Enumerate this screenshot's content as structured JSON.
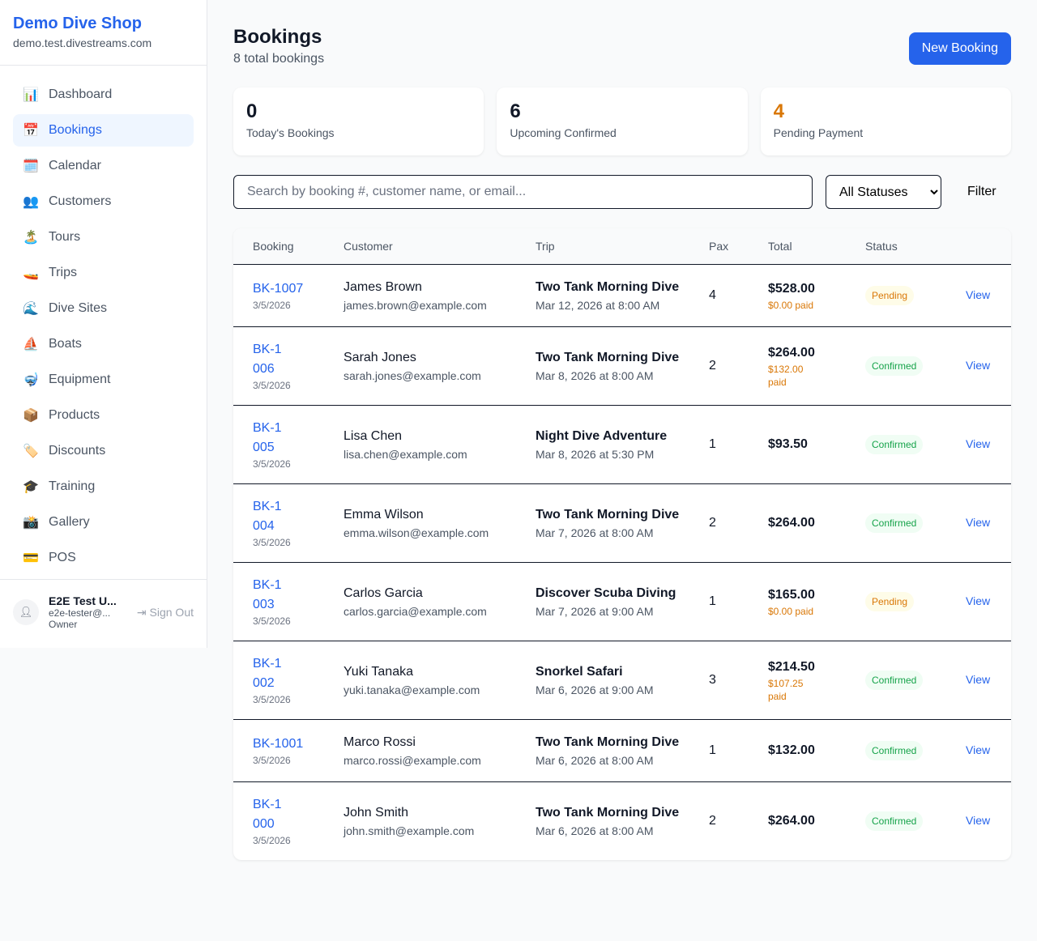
{
  "sidebar": {
    "brand": "Demo Dive Shop",
    "domain": "demo.test.divestreams.com",
    "items": [
      {
        "icon": "📊",
        "label": "Dashboard"
      },
      {
        "icon": "📅",
        "label": "Bookings",
        "active": true
      },
      {
        "icon": "🗓️",
        "label": "Calendar"
      },
      {
        "icon": "👥",
        "label": "Customers"
      },
      {
        "icon": "🏝️",
        "label": "Tours"
      },
      {
        "icon": "🚤",
        "label": "Trips"
      },
      {
        "icon": "🌊",
        "label": "Dive Sites"
      },
      {
        "icon": "⛵",
        "label": "Boats"
      },
      {
        "icon": "🤿",
        "label": "Equipment"
      },
      {
        "icon": "📦",
        "label": "Products"
      },
      {
        "icon": "🏷️",
        "label": "Discounts"
      },
      {
        "icon": "🎓",
        "label": "Training"
      },
      {
        "icon": "📸",
        "label": "Gallery"
      },
      {
        "icon": "💳",
        "label": "POS"
      }
    ],
    "user": {
      "name": "E2E Test U...",
      "email": "e2e-tester@...",
      "role": "Owner",
      "sign_out": "Sign Out"
    }
  },
  "header": {
    "title": "Bookings",
    "subtitle": "8 total bookings",
    "new_booking": "New Booking"
  },
  "stats": [
    {
      "value": "0",
      "label": "Today's Bookings",
      "color": "#111827"
    },
    {
      "value": "6",
      "label": "Upcoming Confirmed",
      "color": "#111827"
    },
    {
      "value": "4",
      "label": "Pending Payment",
      "color": "#d97706"
    }
  ],
  "filters": {
    "search_placeholder": "Search by booking #, customer name, or email...",
    "status_selected": "All Statuses",
    "filter_label": "Filter"
  },
  "table": {
    "headers": [
      "Booking",
      "Customer",
      "Trip",
      "Pax",
      "Total",
      "Status",
      ""
    ],
    "rows": [
      {
        "id": "BK-1007",
        "date": "3/5/2026",
        "customer": "James Brown",
        "email": "james.brown@example.com",
        "trip": "Two Tank Morning Dive",
        "trip_date": "Mar 12, 2026 at 8:00 AM",
        "pax": "4",
        "total": "$528.00",
        "paid": "$0.00 paid",
        "status": "Pending",
        "action": "View"
      },
      {
        "id": "BK-1006",
        "date": "3/5/2026",
        "customer": "Sarah Jones",
        "email": "sarah.jones@example.com",
        "trip": "Two Tank Morning Dive",
        "trip_date": "Mar 8, 2026 at 8:00 AM",
        "pax": "2",
        "total": "$264.00",
        "paid": "$132.00 paid",
        "status": "Confirmed",
        "action": "View"
      },
      {
        "id": "BK-1005",
        "date": "3/5/2026",
        "customer": "Lisa Chen",
        "email": "lisa.chen@example.com",
        "trip": "Night Dive Adventure",
        "trip_date": "Mar 8, 2026 at 5:30 PM",
        "pax": "1",
        "total": "$93.50",
        "paid": "",
        "status": "Confirmed",
        "action": "View"
      },
      {
        "id": "BK-1004",
        "date": "3/5/2026",
        "customer": "Emma Wilson",
        "email": "emma.wilson@example.com",
        "trip": "Two Tank Morning Dive",
        "trip_date": "Mar 7, 2026 at 8:00 AM",
        "pax": "2",
        "total": "$264.00",
        "paid": "",
        "status": "Confirmed",
        "action": "View"
      },
      {
        "id": "BK-1003",
        "date": "3/5/2026",
        "customer": "Carlos Garcia",
        "email": "carlos.garcia@example.com",
        "trip": "Discover Scuba Diving",
        "trip_date": "Mar 7, 2026 at 9:00 AM",
        "pax": "1",
        "total": "$165.00",
        "paid": "$0.00 paid",
        "status": "Pending",
        "action": "View"
      },
      {
        "id": "BK-1002",
        "date": "3/5/2026",
        "customer": "Yuki Tanaka",
        "email": "yuki.tanaka@example.com",
        "trip": "Snorkel Safari",
        "trip_date": "Mar 6, 2026 at 9:00 AM",
        "pax": "3",
        "total": "$214.50",
        "paid": "$107.25 paid",
        "status": "Confirmed",
        "action": "View"
      },
      {
        "id": "BK-1001",
        "date": "3/5/2026",
        "customer": "Marco Rossi",
        "email": "marco.rossi@example.com",
        "trip": "Two Tank Morning Dive",
        "trip_date": "Mar 6, 2026 at 8:00 AM",
        "pax": "1",
        "total": "$132.00",
        "paid": "",
        "status": "Confirmed",
        "action": "View"
      },
      {
        "id": "BK-1000",
        "date": "3/5/2026",
        "customer": "John Smith",
        "email": "john.smith@example.com",
        "trip": "Two Tank Morning Dive",
        "trip_date": "Mar 6, 2026 at 8:00 AM",
        "pax": "2",
        "total": "$264.00",
        "paid": "",
        "status": "Confirmed",
        "action": "View"
      }
    ]
  }
}
